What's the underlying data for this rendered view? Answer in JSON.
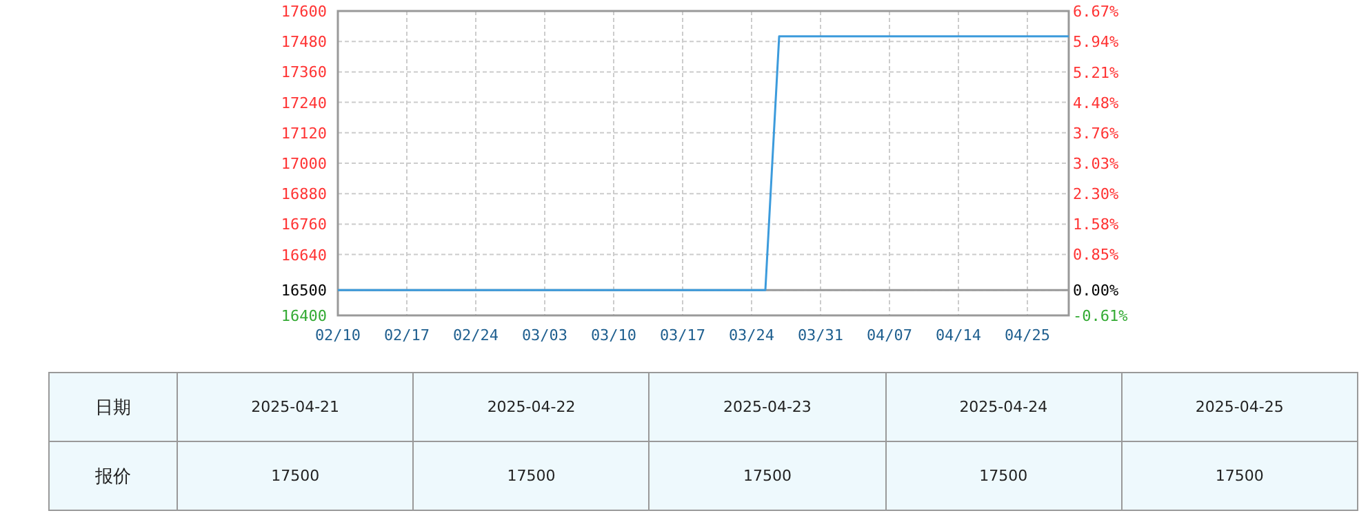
{
  "chart_data": [
    {
      "type": "line",
      "categories": [
        "02/10",
        null,
        null,
        null,
        null,
        "02/17",
        null,
        null,
        null,
        null,
        "02/24",
        null,
        null,
        null,
        null,
        "03/03",
        null,
        null,
        null,
        null,
        "03/10",
        null,
        null,
        null,
        null,
        "03/17",
        null,
        null,
        null,
        null,
        "03/24",
        null,
        null,
        null,
        null,
        "03/31",
        null,
        null,
        null,
        null,
        "04/07",
        null,
        null,
        null,
        null,
        "04/14",
        null,
        null,
        null,
        null,
        "04/25",
        null,
        null,
        null
      ],
      "series": [
        {
          "color": "#3c9bdc",
          "values": [
            16500,
            16500,
            16500,
            16500,
            16500,
            16500,
            16500,
            16500,
            16500,
            16500,
            16500,
            16500,
            16500,
            16500,
            16500,
            16500,
            16500,
            16500,
            16500,
            16500,
            16500,
            16500,
            16500,
            16500,
            16500,
            16500,
            16500,
            16500,
            16500,
            16500,
            16500,
            16500,
            17500,
            17500,
            17500,
            17500,
            17500,
            17500,
            17500,
            17500,
            17500,
            17500,
            17500,
            17500,
            17500,
            17500,
            17500,
            17500,
            17500,
            17500,
            17500,
            17500,
            17500,
            17500
          ]
        }
      ],
      "ylim": [
        16400,
        17600
      ],
      "yticks": [
        16400,
        16500,
        16640,
        16760,
        16880,
        17000,
        17120,
        17240,
        17360,
        17480,
        17600
      ],
      "y2lim": [
        -0.61,
        6.67
      ],
      "y2ticks": [
        {
          "value": -0.61,
          "label": "-0.61%"
        },
        {
          "value": 0,
          "label": "0.00%"
        },
        {
          "value": 0.85,
          "label": "0.85%"
        },
        {
          "value": 1.58,
          "label": "1.58%"
        },
        {
          "value": 2.3,
          "label": "2.30%"
        },
        {
          "value": 3.03,
          "label": "3.03%"
        },
        {
          "value": 3.76,
          "label": "3.76%"
        },
        {
          "value": 4.48,
          "label": "4.48%"
        },
        {
          "value": 5.21,
          "label": "5.21%"
        },
        {
          "value": 5.94,
          "label": "5.94%"
        },
        {
          "value": 6.67,
          "label": "6.67%"
        }
      ],
      "ref_lines": [
        {
          "axis": "y",
          "value": 16500,
          "color": "#999999"
        }
      ],
      "grid": true,
      "line_style": "solid",
      "marker": "none"
    },
    {
      "type": "other",
      "xlabel": "日期",
      "ylabel": "报价",
      "categories": [
        "2025-04-21",
        "2025-04-22",
        "2025-04-23",
        "2025-04-24",
        "2025-04-25"
      ],
      "values": [
        17500,
        17500,
        17500,
        17500,
        17500
      ],
      "data_labels": true
    }
  ]
}
